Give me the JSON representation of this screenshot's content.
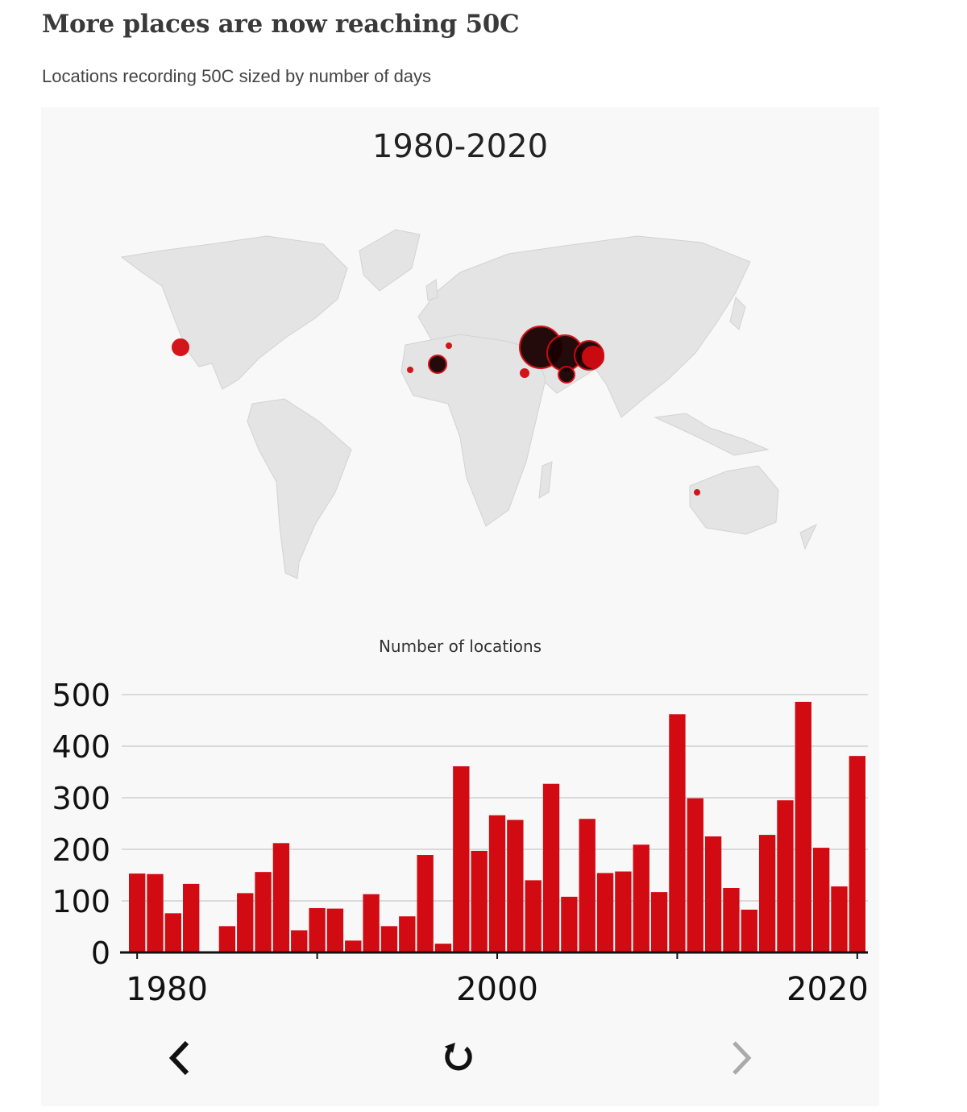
{
  "header": {
    "title": "More places are now reaching 50C",
    "subtitle": "Locations recording 50C sized by number of days"
  },
  "map": {
    "period_label": "1980-2020",
    "land_color": "#e4e4e4",
    "hotspot_color": "#d20a11",
    "hotspot_dark_color": "#1a0000"
  },
  "chart_data": {
    "type": "bar",
    "title": "Number of locations",
    "x": [
      1980,
      1981,
      1982,
      1983,
      1984,
      1985,
      1986,
      1987,
      1988,
      1989,
      1990,
      1991,
      1992,
      1993,
      1994,
      1995,
      1996,
      1997,
      1998,
      1999,
      2000,
      2001,
      2002,
      2003,
      2004,
      2005,
      2006,
      2007,
      2008,
      2009,
      2010,
      2011,
      2012,
      2013,
      2014,
      2015,
      2016,
      2017,
      2018,
      2019,
      2020
    ],
    "values": [
      153,
      152,
      76,
      133,
      0,
      51,
      115,
      156,
      212,
      43,
      86,
      85,
      23,
      113,
      51,
      70,
      189,
      17,
      361,
      197,
      266,
      257,
      140,
      327,
      108,
      259,
      154,
      157,
      209,
      117,
      462,
      299,
      225,
      125,
      83,
      228,
      295,
      486,
      203,
      128,
      381
    ],
    "xticks": [
      "1980",
      "2000",
      "2020"
    ],
    "yticks": [
      "0",
      "100",
      "200",
      "300",
      "400",
      "500"
    ],
    "ylim": [
      0,
      500
    ],
    "grid": true,
    "bar_color": "#d20a11"
  },
  "controls": {
    "prev_icon": "chevron-left-icon",
    "replay_icon": "replay-icon",
    "next_icon": "chevron-right-icon"
  }
}
